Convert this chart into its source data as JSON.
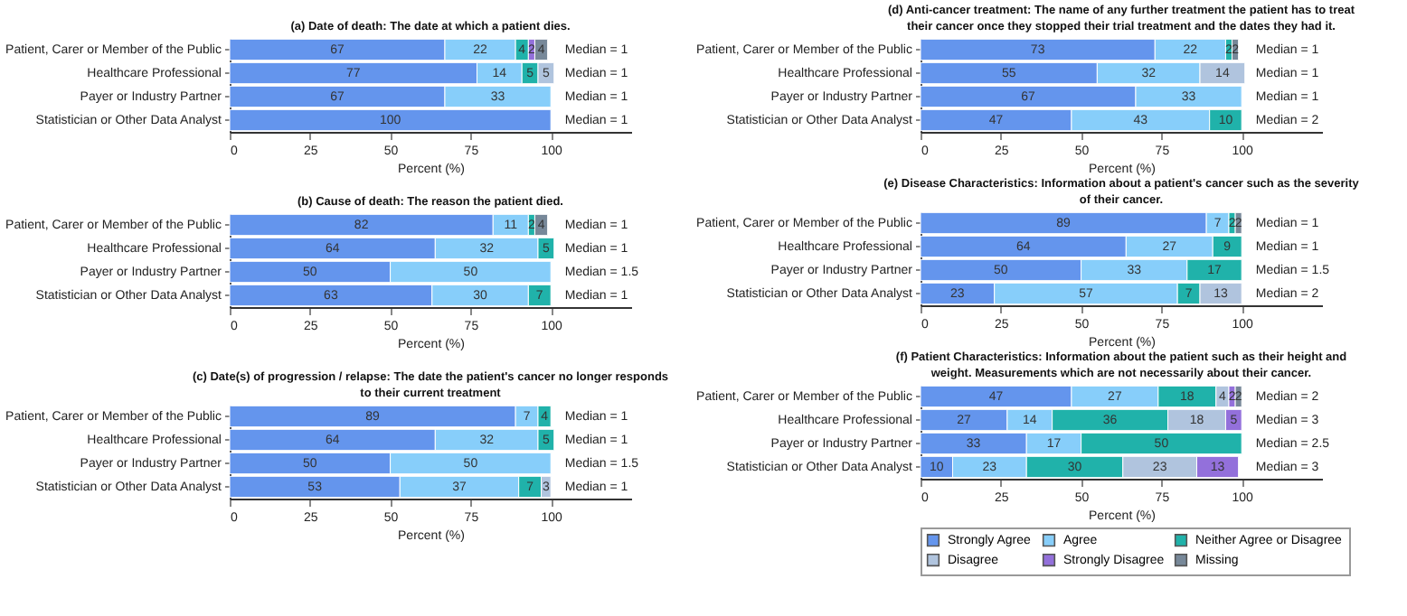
{
  "chart_data": [
    {
      "type": "bar",
      "orientation": "horizontal",
      "stacked": true,
      "data_labels": true,
      "legend": false,
      "title": "(a) Date of death: The date at which a patient dies.",
      "xlabel": "Percent (%)",
      "xlim": [
        0,
        125
      ],
      "xticks": [
        0,
        25,
        50,
        75,
        100
      ],
      "categories": [
        "Patient, Carer or Member of the Public",
        "Healthcare Professional",
        "Payer or Industry Partner",
        "Statistician or Other Data Analyst"
      ],
      "annotations": [
        "Median = 1",
        "Median = 1",
        "Median = 1",
        "Median = 1"
      ],
      "series": [
        {
          "color": "#6495ed",
          "values": [
            67,
            77,
            67,
            100
          ]
        },
        {
          "color": "#87cefa",
          "values": [
            22,
            14,
            33,
            null
          ]
        },
        {
          "color": "#20b2aa",
          "values": [
            4,
            5,
            null,
            null
          ]
        },
        {
          "color": "#b0c4de",
          "values": [
            null,
            5,
            null,
            null
          ]
        },
        {
          "color": "#9370db",
          "values": [
            2,
            null,
            null,
            null
          ]
        },
        {
          "color": "#778899",
          "values": [
            4,
            null,
            null,
            null
          ]
        }
      ]
    },
    {
      "type": "bar",
      "orientation": "horizontal",
      "stacked": true,
      "data_labels": true,
      "legend": false,
      "title": "(b) Cause of death: The reason the patient died.",
      "xlabel": "Percent (%)",
      "xlim": [
        0,
        125
      ],
      "xticks": [
        0,
        25,
        50,
        75,
        100
      ],
      "categories": [
        "Patient, Carer or Member of the Public",
        "Healthcare Professional",
        "Payer or Industry Partner",
        "Statistician or Other Data Analyst"
      ],
      "annotations": [
        "Median = 1",
        "Median = 1",
        "Median = 1.5",
        "Median = 1"
      ],
      "series": [
        {
          "color": "#6495ed",
          "values": [
            82,
            64,
            50,
            63
          ]
        },
        {
          "color": "#87cefa",
          "values": [
            11,
            32,
            50,
            30
          ]
        },
        {
          "color": "#20b2aa",
          "values": [
            2,
            5,
            null,
            7
          ]
        },
        {
          "color": "#778899",
          "values": [
            4,
            null,
            null,
            null
          ]
        }
      ]
    },
    {
      "type": "bar",
      "orientation": "horizontal",
      "stacked": true,
      "data_labels": true,
      "legend": false,
      "title": "(c) Date(s) of progression / relapse: The date the patient's cancer no longer responds to their current treatment",
      "xlabel": "Percent (%)",
      "xlim": [
        0,
        125
      ],
      "xticks": [
        0,
        25,
        50,
        75,
        100
      ],
      "categories": [
        "Patient, Carer or Member of the Public",
        "Healthcare Professional",
        "Payer or Industry Partner",
        "Statistician or Other Data Analyst"
      ],
      "annotations": [
        "Median = 1",
        "Median = 1",
        "Median = 1.5",
        "Median = 1"
      ],
      "series": [
        {
          "color": "#6495ed",
          "values": [
            89,
            64,
            50,
            53
          ]
        },
        {
          "color": "#87cefa",
          "values": [
            7,
            32,
            50,
            37
          ]
        },
        {
          "color": "#20b2aa",
          "values": [
            4,
            5,
            null,
            7
          ]
        },
        {
          "color": "#b0c4de",
          "values": [
            null,
            null,
            null,
            3
          ]
        }
      ]
    },
    {
      "type": "bar",
      "orientation": "horizontal",
      "stacked": true,
      "data_labels": true,
      "legend": false,
      "title": "(d) Anti-cancer treatment: The name of any further treatment the patient has to treat their cancer once they stopped their trial treatment and the dates they had it.",
      "xlabel": "Percent (%)",
      "xlim": [
        0,
        125
      ],
      "xticks": [
        0,
        25,
        50,
        75,
        100
      ],
      "categories": [
        "Patient, Carer or Member of the Public",
        "Healthcare Professional",
        "Payer or Industry Partner",
        "Statistician or Other Data Analyst"
      ],
      "annotations": [
        "Median = 1",
        "Median = 1",
        "Median = 1",
        "Median = 2"
      ],
      "series": [
        {
          "color": "#6495ed",
          "values": [
            73,
            55,
            67,
            47
          ]
        },
        {
          "color": "#87cefa",
          "values": [
            22,
            32,
            33,
            43
          ]
        },
        {
          "color": "#20b2aa",
          "values": [
            2,
            null,
            null,
            10
          ]
        },
        {
          "color": "#b0c4de",
          "values": [
            null,
            14,
            null,
            null
          ]
        },
        {
          "color": "#778899",
          "values": [
            2,
            null,
            null,
            null
          ]
        }
      ]
    },
    {
      "type": "bar",
      "orientation": "horizontal",
      "stacked": true,
      "data_labels": true,
      "legend": false,
      "title": "(e) Disease Characteristics: Information about a patient's cancer such as the severity of their cancer.",
      "xlabel": "Percent (%)",
      "xlim": [
        0,
        125
      ],
      "xticks": [
        0,
        25,
        50,
        75,
        100
      ],
      "categories": [
        "Patient, Carer or Member of the Public",
        "Healthcare Professional",
        "Payer or Industry Partner",
        "Statistician or Other Data Analyst"
      ],
      "annotations": [
        "Median = 1",
        "Median = 1",
        "Median = 1.5",
        "Median = 2"
      ],
      "series": [
        {
          "color": "#6495ed",
          "values": [
            89,
            64,
            50,
            23
          ]
        },
        {
          "color": "#87cefa",
          "values": [
            7,
            27,
            33,
            57
          ]
        },
        {
          "color": "#20b2aa",
          "values": [
            2,
            9,
            17,
            7
          ]
        },
        {
          "color": "#b0c4de",
          "values": [
            null,
            null,
            null,
            13
          ]
        },
        {
          "color": "#778899",
          "values": [
            2,
            null,
            null,
            null
          ]
        }
      ]
    },
    {
      "type": "bar",
      "orientation": "horizontal",
      "stacked": true,
      "data_labels": true,
      "legend": "bottom",
      "title": "(f) Patient Characteristics: Information about the patient such as their height and weight. Measurements which are not necessarily about their cancer.",
      "xlabel": "Percent (%)",
      "xlim": [
        0,
        125
      ],
      "xticks": [
        0,
        25,
        50,
        75,
        100
      ],
      "categories": [
        "Patient, Carer or Member of the Public",
        "Healthcare Professional",
        "Payer or Industry Partner",
        "Statistician or Other Data Analyst"
      ],
      "annotations": [
        "Median = 2",
        "Median = 3",
        "Median = 2.5",
        "Median = 3"
      ],
      "series": [
        {
          "name": "Strongly Agree",
          "color": "#6495ed",
          "values": [
            47,
            27,
            33,
            10
          ]
        },
        {
          "name": "Agree",
          "color": "#87cefa",
          "values": [
            27,
            14,
            17,
            23
          ]
        },
        {
          "name": "Neither Agree or Disagree",
          "color": "#20b2aa",
          "values": [
            18,
            36,
            50,
            30
          ]
        },
        {
          "name": "Disagree",
          "color": "#b0c4de",
          "values": [
            4,
            18,
            null,
            23
          ]
        },
        {
          "name": "Strongly Disagree",
          "color": "#9370db",
          "values": [
            2,
            5,
            null,
            13
          ]
        },
        {
          "name": "Missing",
          "color": "#778899",
          "values": [
            2,
            null,
            null,
            null
          ]
        }
      ]
    }
  ]
}
